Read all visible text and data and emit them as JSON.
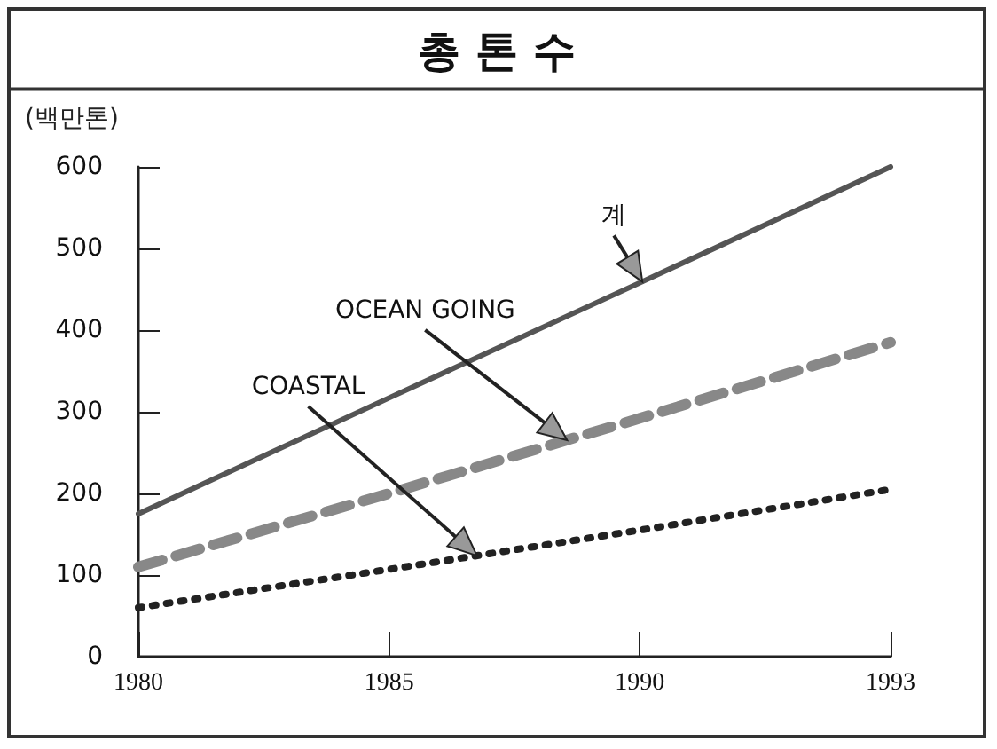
{
  "chart_data": {
    "type": "line",
    "title": "총 톤 수",
    "ylabel": "(백만톤)",
    "categories": [
      "1980",
      "1985",
      "1990",
      "1993"
    ],
    "series": [
      {
        "name": "계",
        "color": "#555555",
        "values": [
          175,
          317,
          458,
          600
        ],
        "line_style": "solid"
      },
      {
        "name": "OCEAN GOING",
        "color": "#888888",
        "values": [
          110,
          200,
          292,
          385
        ],
        "line_style": "dashed"
      },
      {
        "name": "COASTAL",
        "color": "#222222",
        "values": [
          60,
          107,
          155,
          205
        ],
        "line_style": "dotted"
      }
    ],
    "ylim": [
      0,
      600
    ],
    "yticks": [
      0,
      100,
      200,
      300,
      400,
      500,
      600
    ],
    "grid": false,
    "legend": false,
    "marker": "none"
  }
}
